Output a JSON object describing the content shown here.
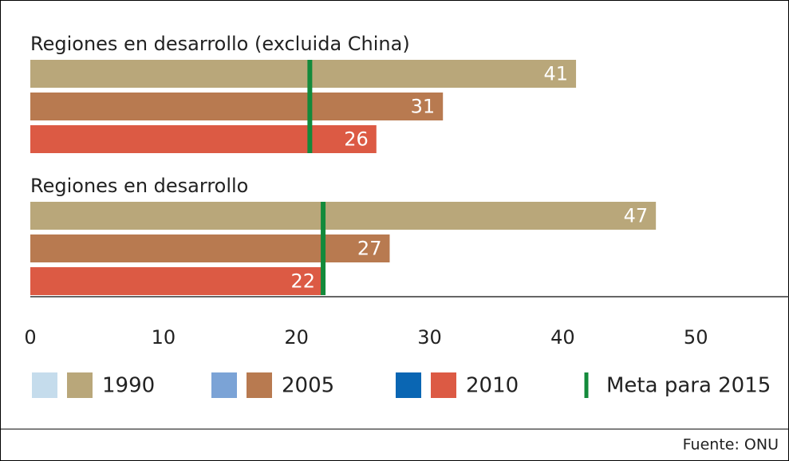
{
  "chart_data": {
    "type": "bar",
    "orientation": "horizontal",
    "categories": [
      "Regiones en desarrollo (excluida China)",
      "Regiones en desarrollo"
    ],
    "series": [
      {
        "name": "1990",
        "color": "#b9a77a",
        "alt_color": "#c5dcec",
        "values": [
          41,
          47
        ]
      },
      {
        "name": "2005",
        "color": "#b87a50",
        "alt_color": "#7ba3d6",
        "values": [
          31,
          27
        ]
      },
      {
        "name": "2010",
        "color": "#dc5a44",
        "alt_color": "#0a66b3",
        "values": [
          26,
          22
        ]
      }
    ],
    "target": {
      "name": "Meta para 2015",
      "color": "#138a3b",
      "values": [
        21,
        22
      ]
    },
    "xlim": [
      0,
      57
    ],
    "xticks": [
      0,
      10,
      20,
      30,
      40,
      50
    ],
    "source": "Fuente: ONU"
  }
}
